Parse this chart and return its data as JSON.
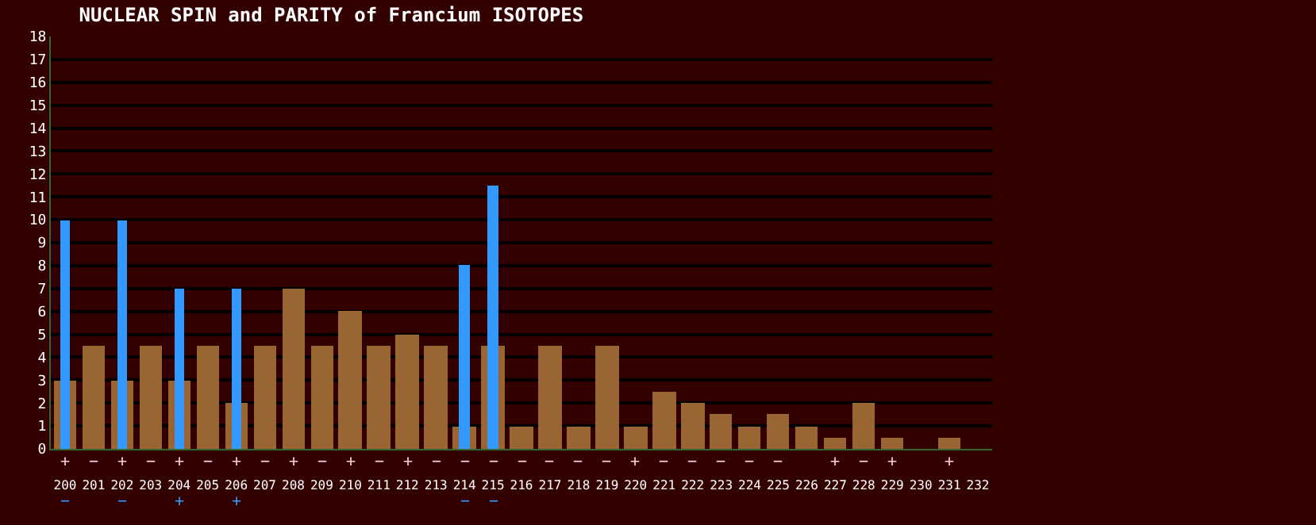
{
  "chart_data": {
    "type": "bar",
    "title": "NUCLEAR SPIN and PARITY of Francium ISOTOPES",
    "categories": [
      "200",
      "201",
      "202",
      "203",
      "204",
      "205",
      "206",
      "207",
      "208",
      "209",
      "210",
      "211",
      "212",
      "213",
      "214",
      "215",
      "216",
      "217",
      "218",
      "219",
      "220",
      "221",
      "222",
      "223",
      "224",
      "225",
      "226",
      "227",
      "228",
      "229",
      "230",
      "231",
      "232"
    ],
    "series": [
      {
        "color": "#996633",
        "values": [
          3,
          4.5,
          3,
          4.5,
          3,
          4.5,
          2,
          4.5,
          7,
          4.5,
          6,
          4.5,
          5,
          4.5,
          1,
          4.5,
          1,
          4.5,
          1,
          4.5,
          1,
          2.5,
          2,
          1.5,
          1,
          1.5,
          1,
          0.5,
          2,
          0.5,
          null,
          0.5,
          null
        ],
        "value_labels": [
          "+",
          "−",
          "+",
          "−",
          "+",
          "−",
          "+",
          "−",
          "+",
          "−",
          "+",
          "−",
          "+",
          "−",
          "−",
          "−",
          "−",
          "−",
          "−",
          "−",
          "+",
          "−",
          "−",
          "−",
          "−",
          "−",
          null,
          "+",
          "−",
          "+",
          null,
          "+",
          null
        ]
      },
      {
        "color": "#3399ff",
        "values": [
          10,
          null,
          10,
          null,
          7,
          null,
          7,
          null,
          null,
          null,
          null,
          null,
          null,
          null,
          8,
          11.5,
          null,
          null,
          null,
          null,
          null,
          null,
          null,
          null,
          null,
          null,
          null,
          null,
          null,
          null,
          null,
          null,
          null
        ],
        "value_labels": [
          "−",
          null,
          "−",
          null,
          "+",
          null,
          "+",
          null,
          null,
          null,
          null,
          null,
          null,
          null,
          "−",
          "−",
          null,
          null,
          null,
          null,
          null,
          null,
          null,
          null,
          null,
          null,
          null,
          null,
          null,
          null,
          null,
          null,
          null
        ]
      }
    ],
    "ylim": [
      0,
      18
    ],
    "yticks": [
      0,
      1,
      2,
      3,
      4,
      5,
      6,
      7,
      8,
      9,
      10,
      11,
      12,
      13,
      14,
      15,
      16,
      17,
      18
    ],
    "grid": "y"
  }
}
